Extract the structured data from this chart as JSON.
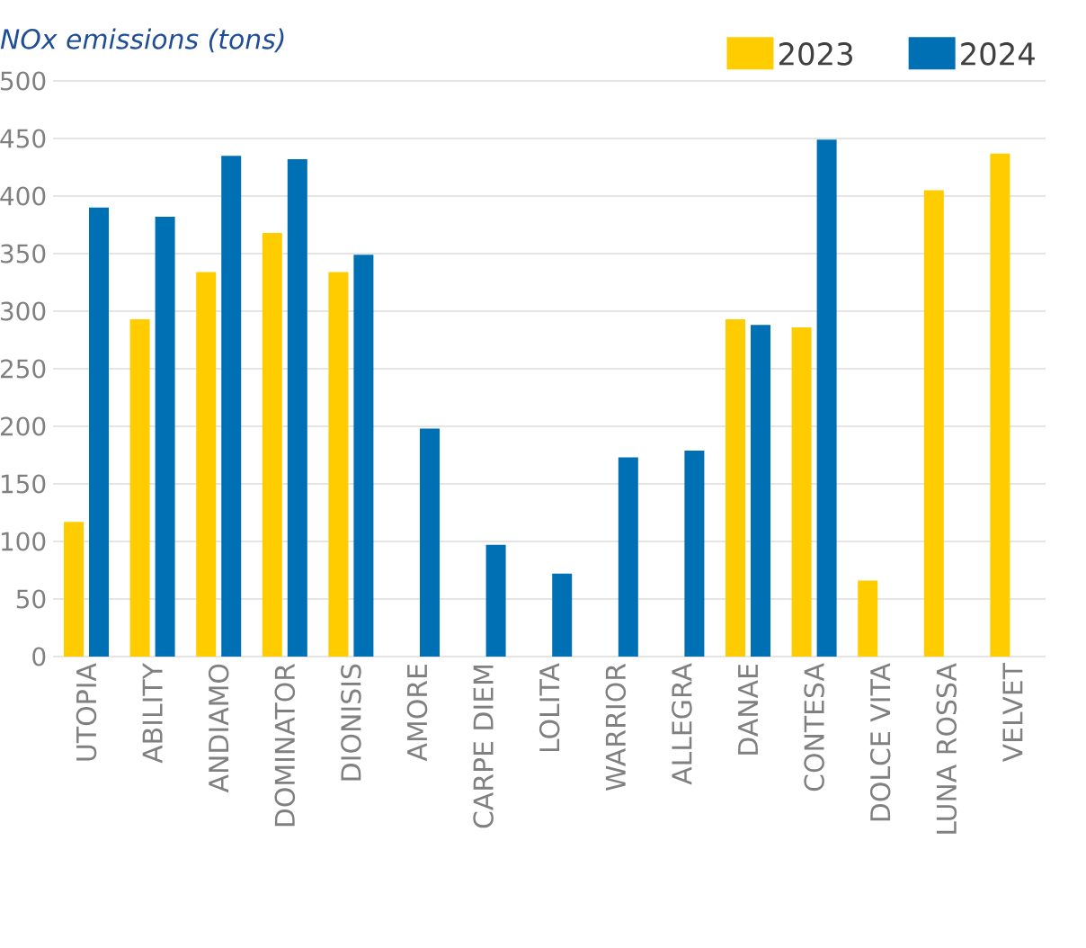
{
  "chart_data": {
    "type": "bar",
    "title": "*NOx emissions (tons)*",
    "categories": [
      "UTOPIA",
      "ABILITY",
      "ANDIAMO",
      "DOMINATOR",
      "DIONISIS",
      "AMORE",
      "CARPE DIEM",
      "LOLITA",
      "WARRIOR",
      "ALLEGRA",
      "DANAE",
      "CONTESA",
      "DOLCE VITA",
      "LUNA ROSSA",
      "VELVET"
    ],
    "series": [
      {
        "name": "2023",
        "color": "#ffcc00",
        "values": [
          117,
          293,
          334,
          368,
          334,
          null,
          null,
          null,
          null,
          null,
          293,
          286,
          66,
          405,
          437
        ]
      },
      {
        "name": "2024",
        "color": "#0070b5",
        "values": [
          390,
          382,
          435,
          432,
          349,
          198,
          97,
          72,
          173,
          179,
          288,
          449,
          null,
          null,
          null
        ]
      }
    ],
    "ylim": [
      0,
      500
    ],
    "yticks": [
      0,
      50,
      100,
      150,
      200,
      250,
      300,
      350,
      400,
      450,
      500
    ],
    "grid": "y",
    "legend": "top right"
  }
}
